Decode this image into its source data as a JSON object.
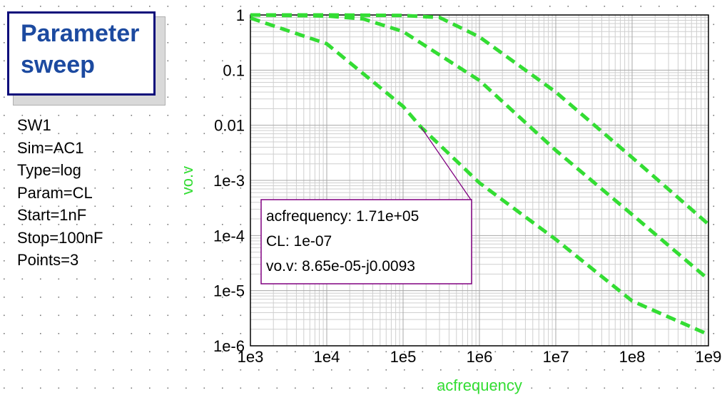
{
  "sweep": {
    "title": "Parameter\nsweep",
    "params": [
      "SW1",
      "Sim=AC1",
      "Type=log",
      "Param=CL",
      "Start=1nF",
      "Stop=100nF",
      "Points=3"
    ]
  },
  "chart_data": {
    "type": "line",
    "title": "",
    "xlabel": "acfrequency",
    "ylabel": "vo.v",
    "xscale": "log",
    "yscale": "log",
    "xlim": [
      1000,
      1000000000
    ],
    "ylim": [
      1e-06,
      1
    ],
    "grid": true,
    "x_ticks": [
      1000,
      10000,
      100000,
      1000000,
      10000000,
      100000000,
      1000000000
    ],
    "x_tick_labels": [
      "1e3",
      "1e4",
      "1e5",
      "1e6",
      "1e7",
      "1e8",
      "1e9"
    ],
    "y_ticks": [
      1,
      0.1,
      0.01,
      0.001,
      0.0001,
      1e-05,
      1e-06
    ],
    "y_tick_labels": [
      "1",
      "0.1",
      "0.01",
      "1e-3",
      "1e-4",
      "1e-5",
      "1e-6"
    ],
    "series_color": "#33dd33",
    "series": [
      {
        "x": [
          1000,
          10000,
          100000,
          300000,
          1000000,
          10000000,
          100000000,
          1000000000
        ],
        "y": [
          1,
          1,
          0.98,
          0.9,
          0.4,
          0.04,
          0.0026,
          0.00016
        ]
      },
      {
        "x": [
          1000,
          10000,
          30000,
          100000,
          1000000,
          10000000,
          100000000,
          1000000000
        ],
        "y": [
          1,
          0.96,
          0.85,
          0.5,
          0.065,
          0.0035,
          0.00024,
          1.6e-05
        ]
      },
      {
        "x": [
          1000,
          10000,
          100000,
          171000,
          1000000,
          10000000,
          100000000,
          1000000000
        ],
        "y": [
          0.88,
          0.3,
          0.022,
          0.0093,
          0.0009,
          8.5e-05,
          6.5e-06,
          1.6e-06
        ]
      }
    ],
    "marker": {
      "x": 171000,
      "y": 0.0093,
      "lines": [
        "acfrequency: 1.71e+05",
        "CL: 1e-07",
        "vo.v: 8.65e-05-j0.0093"
      ],
      "color": "#800080"
    }
  }
}
